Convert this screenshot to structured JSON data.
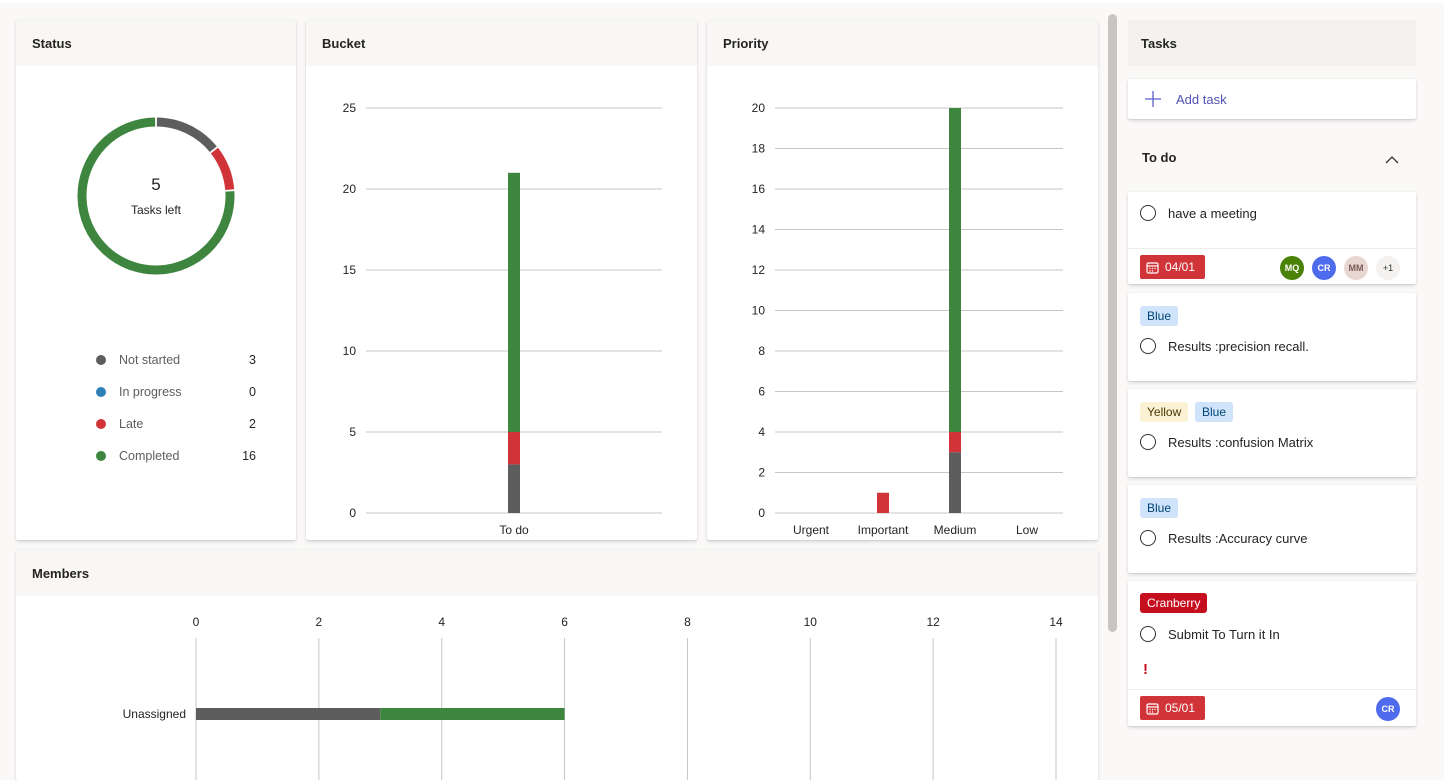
{
  "status": {
    "title": "Status",
    "center_value": "5",
    "center_label": "Tasks left",
    "legend": [
      {
        "label": "Not started",
        "value": "3",
        "color": "#5d5d5d"
      },
      {
        "label": "In progress",
        "value": "0",
        "color": "#2f7fb8"
      },
      {
        "label": "Late",
        "value": "2",
        "color": "#d13438"
      },
      {
        "label": "Completed",
        "value": "16",
        "color": "#3e8540"
      }
    ]
  },
  "bucket": {
    "title": "Bucket"
  },
  "priority": {
    "title": "Priority"
  },
  "members": {
    "title": "Members"
  },
  "chart_data": [
    {
      "type": "pie",
      "title": "Status",
      "variant": "donut",
      "categories": [
        "Not started",
        "In progress",
        "Late",
        "Completed"
      ],
      "values": [
        3,
        0,
        2,
        16
      ],
      "colors": [
        "#5d5d5d",
        "#2f7fb8",
        "#d13438",
        "#3e8540"
      ]
    },
    {
      "type": "bar",
      "title": "Bucket",
      "stacked": true,
      "categories": [
        "To do"
      ],
      "series": [
        {
          "name": "Not started",
          "values": [
            3
          ],
          "color": "#5d5d5d"
        },
        {
          "name": "Late",
          "values": [
            2
          ],
          "color": "#d13438"
        },
        {
          "name": "Completed",
          "values": [
            16
          ],
          "color": "#3e8540"
        }
      ],
      "yticks": [
        0,
        5,
        10,
        15,
        20,
        25
      ],
      "ylim": [
        0,
        25
      ]
    },
    {
      "type": "bar",
      "title": "Priority",
      "stacked": true,
      "categories": [
        "Urgent",
        "Important",
        "Medium",
        "Low"
      ],
      "series": [
        {
          "name": "Not started",
          "values": [
            0,
            0,
            3,
            0
          ],
          "color": "#5d5d5d"
        },
        {
          "name": "Late",
          "values": [
            0,
            1,
            1,
            0
          ],
          "color": "#d13438"
        },
        {
          "name": "Completed",
          "values": [
            0,
            0,
            16,
            0
          ],
          "color": "#3e8540"
        }
      ],
      "yticks": [
        0,
        2,
        4,
        6,
        8,
        10,
        12,
        14,
        16,
        18,
        20
      ],
      "ylim": [
        0,
        20
      ]
    },
    {
      "type": "bar",
      "orientation": "horizontal",
      "title": "Members",
      "stacked": true,
      "categories": [
        "Unassigned"
      ],
      "series": [
        {
          "name": "Not started",
          "values": [
            3
          ],
          "color": "#5d5d5d"
        },
        {
          "name": "Completed",
          "values": [
            3
          ],
          "color": "#3e8540"
        }
      ],
      "xticks": [
        0,
        2,
        4,
        6,
        8,
        10,
        12,
        14
      ],
      "xlim": [
        0,
        14
      ]
    }
  ],
  "tasks": {
    "title": "Tasks",
    "add_task_label": "Add task",
    "section_title": "To do",
    "items": [
      {
        "title": "have a meeting",
        "date": "04/01",
        "avatars": [
          "MQ",
          "CR",
          "MM",
          "+1"
        ]
      },
      {
        "labels": [
          "Blue"
        ],
        "title": "Results :precision recall."
      },
      {
        "labels": [
          "Yellow",
          "Blue"
        ],
        "title": "Results :confusion Matrix"
      },
      {
        "labels": [
          "Blue"
        ],
        "title": "Results :Accuracy curve"
      },
      {
        "labels": [
          "Cranberry"
        ],
        "title": "Submit To Turn it In",
        "important_mark": "!",
        "date": "05/01",
        "avatars": [
          "CR"
        ]
      }
    ]
  },
  "colors": {
    "avatar_mq": "#498205",
    "avatar_cr": "#4f6bed",
    "avatar_mm": "#e8d6d2",
    "avatar_more": "#f3f2f1",
    "accent": "#5b5fc7"
  }
}
